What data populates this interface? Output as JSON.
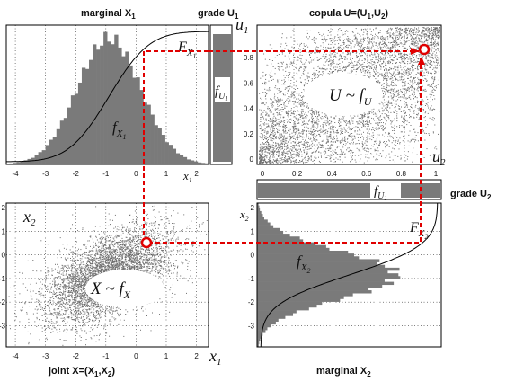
{
  "titles": {
    "marginal_x1": "marginal X",
    "marginal_x1_sub": "1",
    "grade_u1": "grade U",
    "grade_u1_sub": "1",
    "copula": "copula U=(U",
    "copula_sub1": "1",
    "copula_mid": ",U",
    "copula_sub2": "2",
    "copula_end": ")",
    "grade_u2": "grade U",
    "grade_u2_sub": "2",
    "joint": "joint X=(X",
    "joint_sub1": "1",
    "joint_mid": ",X",
    "joint_sub2": "2",
    "joint_end": ")",
    "marginal_x2": "marginal X",
    "marginal_x2_sub": "2"
  },
  "labels": {
    "F_X1": "F",
    "F_X1_sub": "X",
    "F_X1_subsub": "1",
    "f_X1": "f",
    "f_X1_sub": "X",
    "f_X1_subsub": "1",
    "f_U1": "f",
    "f_U1_sub": "U",
    "f_U1_subsub": "1",
    "f_U1b": "f",
    "f_U1b_sub": "U",
    "f_U1b_subsub": "1",
    "U_fU": "U ~ f",
    "U_fU_sub": "U",
    "X_fX": "X ~ f",
    "X_fX_sub": "X",
    "f_X2": "f",
    "f_X2_sub": "X",
    "f_X2_subsub": "2",
    "F_X2": "F",
    "F_X2_sub": "X",
    "F_X2_subsub": "2",
    "u1_axis": "u",
    "u1_axis_sub": "1",
    "u2_axis": "u",
    "u2_axis_sub": "2",
    "x1_axis": "x",
    "x1_axis_sub": "1",
    "x2_axis": "x",
    "x2_axis_sub": "2",
    "x1_small": "x",
    "x1_small_sub": "1",
    "x2_small": "x",
    "x2_small_sub": "2"
  },
  "ticks": {
    "x1_marginal": [
      "-4",
      "-3",
      "-2",
      "-1",
      "0",
      "1",
      "2"
    ],
    "u1_copula": [
      "0.8",
      "0.6",
      "0.4",
      "0.2",
      "0"
    ],
    "u2_copula": [
      "0",
      "0.2",
      "0.4",
      "0.6",
      "0.8",
      "1"
    ],
    "x2_joint": [
      "2",
      "1",
      "0",
      "-1",
      "-2",
      "-3"
    ],
    "x1_joint": [
      "-4",
      "-3",
      "-2",
      "-1",
      "0",
      "1",
      "2"
    ],
    "x2_marginal": [
      "2",
      "1",
      "0",
      "-1",
      "-2",
      "-3"
    ]
  },
  "chart_data": [
    {
      "type": "bar",
      "panel": "marginal X1",
      "description": "histogram of standard normal samples with CDF overlay",
      "x": [
        -4,
        -3.75,
        -3.5,
        -3.25,
        -3,
        -2.75,
        -2.5,
        -2.25,
        -2,
        -1.75,
        -1.5,
        -1.25,
        -1,
        -0.75,
        -0.5,
        -0.25,
        0,
        0.25,
        0.5,
        0.75,
        1,
        1.25,
        1.5,
        1.75,
        2
      ],
      "xlim": [
        -4.3,
        2.4
      ]
    },
    {
      "type": "scatter",
      "panel": "copula U=(U1,U2)",
      "xlim": [
        0,
        1
      ],
      "ylim": [
        0,
        1
      ]
    },
    {
      "type": "scatter",
      "panel": "joint X=(X1,X2)",
      "xlim": [
        -4.3,
        2.4
      ],
      "ylim": [
        -3.9,
        2.2
      ]
    },
    {
      "type": "bar",
      "panel": "marginal X2",
      "description": "horizontal histogram with CDF overlay",
      "ylim": [
        -3.9,
        2.2
      ]
    }
  ],
  "colors": {
    "bars": "#7a7a7a",
    "dots": "#6e6e6e",
    "arrow": "#e00000"
  }
}
